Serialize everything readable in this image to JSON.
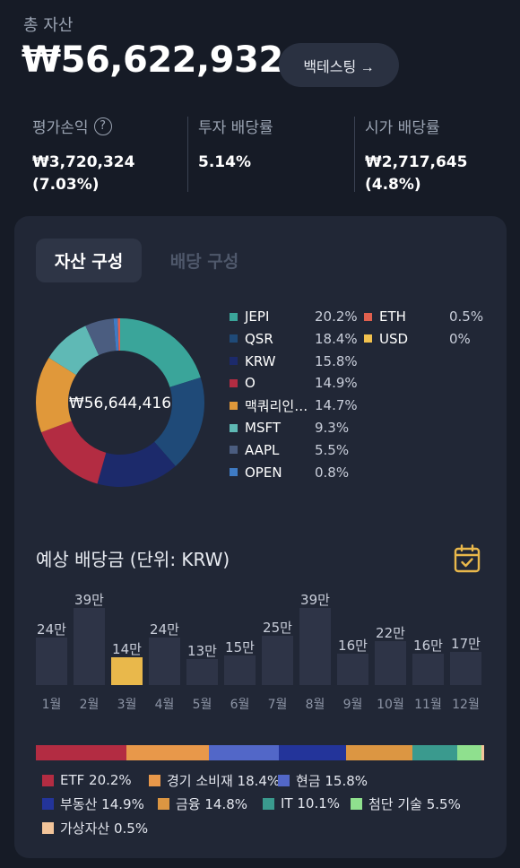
{
  "header": {
    "total_label": "총 자산",
    "total_value": "₩56,622,932",
    "backtest_label": "백테스팅 →"
  },
  "stats": {
    "profit_label": "평가손익",
    "profit_value_line1": "₩3,720,324",
    "profit_value_line2": "(7.03%)",
    "invest_yield_label": "투자 배당률",
    "invest_yield_value": "5.14%",
    "market_yield_label": "시가 배당률",
    "market_yield_value": "₩2,717,645 (4.8%)",
    "help_glyph": "?"
  },
  "tabs": {
    "asset": "자산 구성",
    "dividend": "배당 구성"
  },
  "allocation": {
    "center_value": "₩56,644,416",
    "items": [
      {
        "name": "JEPI",
        "pct": "20.2%",
        "value": 20.2,
        "color": "#3aa59a"
      },
      {
        "name": "QSR",
        "pct": "18.4%",
        "value": 18.4,
        "color": "#1f4a78"
      },
      {
        "name": "KRW",
        "pct": "15.8%",
        "value": 15.8,
        "color": "#1c2a6b"
      },
      {
        "name": "O",
        "pct": "14.9%",
        "value": 14.9,
        "color": "#b32c42"
      },
      {
        "name": "맥쿼리인…",
        "pct": "14.7%",
        "value": 14.7,
        "color": "#e0983a"
      },
      {
        "name": "MSFT",
        "pct": "9.3%",
        "value": 9.3,
        "color": "#5fb9b5"
      },
      {
        "name": "AAPL",
        "pct": "5.5%",
        "value": 5.5,
        "color": "#4b5d80"
      },
      {
        "name": "OPEN",
        "pct": "0.8%",
        "value": 0.8,
        "color": "#3f7bc4"
      },
      {
        "name": "ETH",
        "pct": "0.5%",
        "value": 0.5,
        "color": "#e0604e"
      },
      {
        "name": "USD",
        "pct": "0%",
        "value": 0,
        "color": "#f2c14e"
      }
    ]
  },
  "dividend": {
    "title": "예상 배당금 (단위: KRW)",
    "months": [
      {
        "month": "1월",
        "label": "24만",
        "value": 24
      },
      {
        "month": "2월",
        "label": "39만",
        "value": 39
      },
      {
        "month": "3월",
        "label": "14만",
        "value": 14,
        "highlight": true
      },
      {
        "month": "4월",
        "label": "24만",
        "value": 24
      },
      {
        "month": "5월",
        "label": "13만",
        "value": 13
      },
      {
        "month": "6월",
        "label": "15만",
        "value": 15
      },
      {
        "month": "7월",
        "label": "25만",
        "value": 25
      },
      {
        "month": "8월",
        "label": "39만",
        "value": 39
      },
      {
        "month": "9월",
        "label": "16만",
        "value": 16
      },
      {
        "month": "10월",
        "label": "22만",
        "value": 22
      },
      {
        "month": "11월",
        "label": "16만",
        "value": 16
      },
      {
        "month": "12월",
        "label": "17만",
        "value": 17
      }
    ],
    "highlight_color": "#e9b84b",
    "bar_color": "#2e3447"
  },
  "sectors": [
    {
      "label": "ETF 20.2%",
      "value": 20.2,
      "color": "#b32c42"
    },
    {
      "label": "경기 소비재 18.4%",
      "value": 18.4,
      "color": "#e8984a"
    },
    {
      "label": "현금 15.8%",
      "value": 15.8,
      "color": "#5267c8"
    },
    {
      "label": "부동산 14.9%",
      "value": 14.9,
      "color": "#23349a"
    },
    {
      "label": "금융 14.8%",
      "value": 14.8,
      "color": "#dc9642"
    },
    {
      "label": "IT 10.1%",
      "value": 10.1,
      "color": "#3a9a8e"
    },
    {
      "label": "첨단 기술 5.5%",
      "value": 5.5,
      "color": "#8fe08e"
    },
    {
      "label": "가상자산 0.5%",
      "value": 0.5,
      "color": "#f2c49a"
    }
  ],
  "chart_data": [
    {
      "type": "pie",
      "title": "",
      "categories": [
        "JEPI",
        "QSR",
        "KRW",
        "O",
        "맥쿼리인…",
        "MSFT",
        "AAPL",
        "OPEN",
        "ETH",
        "USD"
      ],
      "values": [
        20.2,
        18.4,
        15.8,
        14.9,
        14.7,
        9.3,
        5.5,
        0.8,
        0.5,
        0
      ]
    },
    {
      "type": "bar",
      "title": "예상 배당금 (단위: KRW)",
      "categories": [
        "1월",
        "2월",
        "3월",
        "4월",
        "5월",
        "6월",
        "7월",
        "8월",
        "9월",
        "10월",
        "11월",
        "12월"
      ],
      "values": [
        24,
        39,
        14,
        24,
        13,
        15,
        25,
        39,
        16,
        22,
        16,
        17
      ],
      "data_labels": [
        "24만",
        "39만",
        "14만",
        "24만",
        "13만",
        "15만",
        "25만",
        "39만",
        "16만",
        "22만",
        "16만",
        "17만"
      ]
    }
  ]
}
